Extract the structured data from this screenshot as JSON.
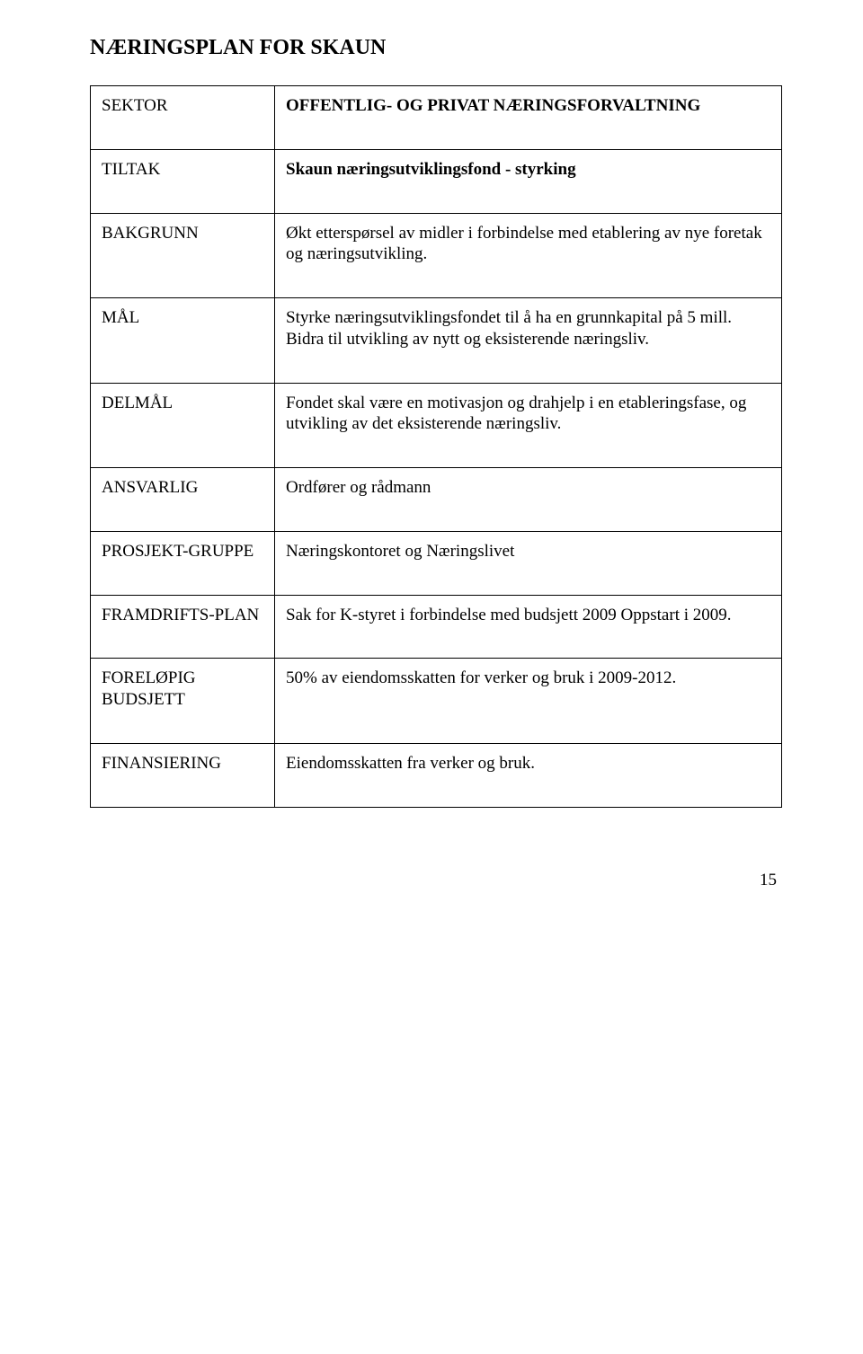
{
  "page_title": "NÆRINGSPLAN FOR SKAUN",
  "rows": [
    {
      "label": "SEKTOR",
      "label_bold": false,
      "content": "OFFENTLIG- OG PRIVAT NÆRINGSFORVALTNING",
      "content_bold": true
    },
    {
      "label": "TILTAK",
      "label_bold": false,
      "content": "Skaun næringsutviklingsfond - styrking",
      "content_bold": true
    },
    {
      "label": "BAKGRUNN",
      "label_bold": false,
      "content": "Økt etterspørsel av midler i forbindelse med etablering av nye foretak og næringsutvikling.",
      "content_bold": false
    },
    {
      "label": "MÅL",
      "label_bold": false,
      "content": "Styrke næringsutviklingsfondet til å ha en grunnkapital på  5 mill. Bidra til utvikling av nytt og eksisterende næringsliv.",
      "content_bold": false
    },
    {
      "label": "DELMÅL",
      "label_bold": false,
      "content": "Fondet skal være en motivasjon og drahjelp i en etableringsfase, og utvikling av det eksisterende næringsliv.",
      "content_bold": false
    },
    {
      "label": "ANSVARLIG",
      "label_bold": false,
      "content": "Ordfører og rådmann",
      "content_bold": false
    },
    {
      "label": "PROSJEKT-GRUPPE",
      "label_bold": false,
      "content": "Næringskontoret og Næringslivet",
      "content_bold": false
    },
    {
      "label": "FRAMDRIFTS-PLAN",
      "label_bold": false,
      "content": "Sak for K-styret i forbindelse med budsjett 2009 Oppstart i 2009.",
      "content_bold": false
    },
    {
      "label": "FORELØPIG BUDSJETT",
      "label_bold": false,
      "content": "50% av eiendomsskatten for verker og bruk i 2009-2012.",
      "content_bold": false
    },
    {
      "label": "FINANSIERING",
      "label_bold": false,
      "content": "Eiendomsskatten fra verker og bruk.",
      "content_bold": false
    }
  ],
  "page_number": "15"
}
